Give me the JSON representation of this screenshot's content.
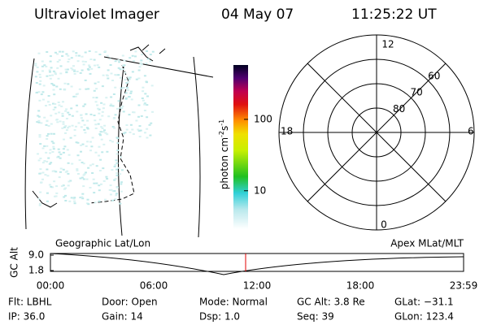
{
  "header": {
    "title": "Ultraviolet Imager",
    "date": "04 May 07",
    "time": "11:25:22 UT"
  },
  "colorbar": {
    "label": "photon cm",
    "exp1": "-2",
    "mid": "s",
    "exp2": "-1",
    "log": true,
    "range": [
      2.9,
      577
    ],
    "ticks": [
      10,
      100
    ]
  },
  "polar": {
    "rlim": [
      90,
      50
    ],
    "lat_labels": [
      60,
      70,
      80
    ],
    "mlt_labels": {
      "top": "12",
      "left": "18",
      "right": "6",
      "bottom": "0"
    }
  },
  "altitude_plot": {
    "left_label": "Geographic Lat/Lon",
    "right_label": "Apex MLat/MLT",
    "y_label": "GC Alt",
    "ylim": [
      1.8,
      9.0
    ],
    "yticks": [
      {
        "value": 9.0,
        "label": "9.0"
      },
      {
        "value": 1.8,
        "label": "1.8"
      }
    ],
    "xticks": [
      "00:00",
      "06:00",
      "12:00",
      "18:00",
      "23:59"
    ]
  },
  "footer": {
    "rows": [
      [
        "Flt: LBHL",
        "Door: Open",
        "Mode: Normal",
        "GC Alt: 3.8 Re",
        "GLat: −31.1"
      ],
      [
        "IP: 36.0",
        "Gain: 14",
        "Dsp:    1.0",
        "Seq: 39",
        "GLon: 123.4"
      ]
    ]
  }
}
